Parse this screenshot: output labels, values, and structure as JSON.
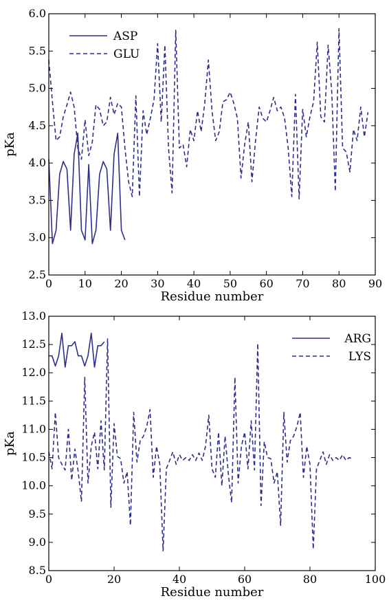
{
  "chart_data": [
    {
      "type": "line",
      "xlabel": "Residue number",
      "ylabel": "pKa",
      "xlim": [
        0,
        90
      ],
      "ylim": [
        2.5,
        6.0
      ],
      "xticks": [
        0,
        10,
        20,
        30,
        40,
        50,
        60,
        70,
        80,
        90
      ],
      "yticks": [
        2.5,
        3.0,
        3.5,
        4.0,
        4.5,
        5.0,
        5.5,
        6.0
      ],
      "ytick_labels": [
        "2.5",
        "3.0",
        "3.5",
        "4.0",
        "4.5",
        "5.0",
        "5.5",
        "6.0"
      ],
      "legend_position": "top-left",
      "line_color": "#2d2d8c",
      "series": [
        {
          "name": "ASP",
          "style": "solid",
          "x": [
            0,
            1,
            2,
            3,
            4,
            5,
            6,
            7,
            8,
            9,
            10,
            11,
            12,
            13,
            14,
            15,
            16,
            17,
            18,
            19,
            20,
            21,
            22
          ],
          "y": [
            4.05,
            2.92,
            3.1,
            3.85,
            4.02,
            3.92,
            3.1,
            4.12,
            4.4,
            3.1,
            2.97,
            3.98,
            2.92,
            3.1,
            3.85,
            4.02,
            3.92,
            3.1,
            4.12,
            4.4,
            3.1,
            2.97,
            null
          ]
        },
        {
          "name": "GLU",
          "style": "dashed",
          "x": [
            0,
            1,
            2,
            3,
            4,
            5,
            6,
            7,
            8,
            9,
            10,
            11,
            12,
            13,
            14,
            15,
            16,
            17,
            18,
            19,
            20,
            21,
            22,
            23,
            24,
            25,
            26,
            27,
            28,
            29,
            30,
            31,
            32,
            33,
            34,
            35,
            36,
            37,
            38,
            39,
            40,
            41,
            42,
            43,
            44,
            45,
            46,
            47,
            48,
            49,
            50,
            51,
            52,
            53,
            54,
            55,
            56,
            57,
            58,
            59,
            60,
            61,
            62,
            63,
            64,
            65,
            66,
            67,
            68,
            69,
            70,
            71,
            72,
            73,
            74,
            75,
            76,
            77,
            78,
            79,
            80,
            81,
            82,
            83,
            84,
            85,
            86,
            87,
            88
          ],
          "y": [
            5.38,
            4.82,
            4.3,
            4.35,
            4.62,
            4.78,
            4.95,
            4.75,
            4.2,
            4.05,
            4.58,
            4.1,
            4.28,
            4.78,
            4.72,
            4.5,
            4.55,
            4.88,
            4.65,
            4.8,
            4.75,
            4.2,
            3.75,
            3.55,
            4.9,
            3.55,
            4.7,
            4.38,
            4.6,
            4.85,
            5.6,
            4.55,
            5.58,
            4.2,
            3.6,
            5.78,
            4.2,
            4.25,
            3.95,
            4.45,
            4.3,
            4.7,
            4.42,
            4.8,
            5.38,
            4.7,
            4.3,
            4.42,
            4.82,
            4.85,
            4.95,
            4.8,
            4.6,
            3.8,
            4.25,
            4.55,
            3.75,
            4.3,
            4.75,
            4.6,
            4.55,
            4.7,
            4.88,
            4.7,
            4.75,
            4.6,
            4.2,
            3.55,
            4.92,
            3.52,
            4.72,
            4.35,
            4.62,
            4.82,
            5.62,
            4.62,
            4.55,
            5.58,
            4.95,
            3.62,
            5.8,
            4.2,
            4.15,
            3.88,
            4.45,
            4.3,
            4.75,
            4.35,
            4.68
          ]
        }
      ]
    },
    {
      "type": "line",
      "xlabel": "Residue number",
      "ylabel": "pKa",
      "xlim": [
        0,
        100
      ],
      "ylim": [
        8.5,
        13.0
      ],
      "xticks": [
        0,
        20,
        40,
        60,
        80,
        100
      ],
      "yticks": [
        8.5,
        9.0,
        9.5,
        10.0,
        10.5,
        11.0,
        11.5,
        12.0,
        12.5,
        13.0
      ],
      "ytick_labels": [
        "8.5",
        "9.0",
        "9.5",
        "10.0",
        "10.5",
        "11.0",
        "11.5",
        "12.0",
        "12.5",
        "13.0"
      ],
      "legend_position": "top-right",
      "line_color": "#2d2d8c",
      "series": [
        {
          "name": "ARG",
          "style": "solid",
          "x": [
            0,
            1,
            2,
            3,
            4,
            5,
            6,
            7,
            8,
            9,
            10,
            11,
            12,
            13,
            14,
            15,
            16,
            17,
            18
          ],
          "y": [
            12.3,
            12.3,
            12.12,
            12.3,
            12.7,
            12.1,
            12.48,
            12.48,
            12.55,
            12.3,
            12.3,
            12.12,
            12.3,
            12.7,
            12.1,
            12.48,
            12.48,
            12.55,
            null
          ]
        },
        {
          "name": "LYS",
          "style": "dashed",
          "x": [
            0,
            1,
            2,
            3,
            4,
            5,
            6,
            7,
            8,
            9,
            10,
            11,
            12,
            13,
            14,
            15,
            16,
            17,
            18,
            19,
            20,
            21,
            22,
            23,
            24,
            25,
            26,
            27,
            28,
            29,
            30,
            31,
            32,
            33,
            34,
            35,
            36,
            37,
            38,
            39,
            40,
            41,
            42,
            43,
            44,
            45,
            46,
            47,
            48,
            49,
            50,
            51,
            52,
            53,
            54,
            55,
            56,
            57,
            58,
            59,
            60,
            61,
            62,
            63,
            64,
            65,
            66,
            67,
            68,
            69,
            70,
            71,
            72,
            73,
            74,
            75,
            76,
            77,
            78,
            79,
            80,
            81,
            82,
            83,
            84,
            85,
            86,
            87,
            88,
            89,
            90,
            91,
            92,
            93
          ],
          "y": [
            10.6,
            10.3,
            11.3,
            10.5,
            10.38,
            10.28,
            11.0,
            10.1,
            10.65,
            10.25,
            9.72,
            11.92,
            10.05,
            10.7,
            10.95,
            10.3,
            11.15,
            10.28,
            12.6,
            9.62,
            11.1,
            10.52,
            10.48,
            10.05,
            10.25,
            9.3,
            11.3,
            10.42,
            10.8,
            10.88,
            11.05,
            11.35,
            10.15,
            10.7,
            10.38,
            8.85,
            10.3,
            10.45,
            10.6,
            10.38,
            10.55,
            10.45,
            10.5,
            10.45,
            10.55,
            10.45,
            10.58,
            10.45,
            10.7,
            11.25,
            10.3,
            10.15,
            10.95,
            10.0,
            10.88,
            10.2,
            9.7,
            11.92,
            10.05,
            10.7,
            10.95,
            10.3,
            11.15,
            10.28,
            12.52,
            9.65,
            10.78,
            10.5,
            10.48,
            10.05,
            10.25,
            9.3,
            11.3,
            10.42,
            10.8,
            10.88,
            11.05,
            11.3,
            10.15,
            10.7,
            10.38,
            8.88,
            10.3,
            10.45,
            10.6,
            10.38,
            10.55,
            10.45,
            10.5,
            10.45,
            10.55,
            10.45,
            10.5,
            10.48
          ]
        }
      ]
    }
  ]
}
